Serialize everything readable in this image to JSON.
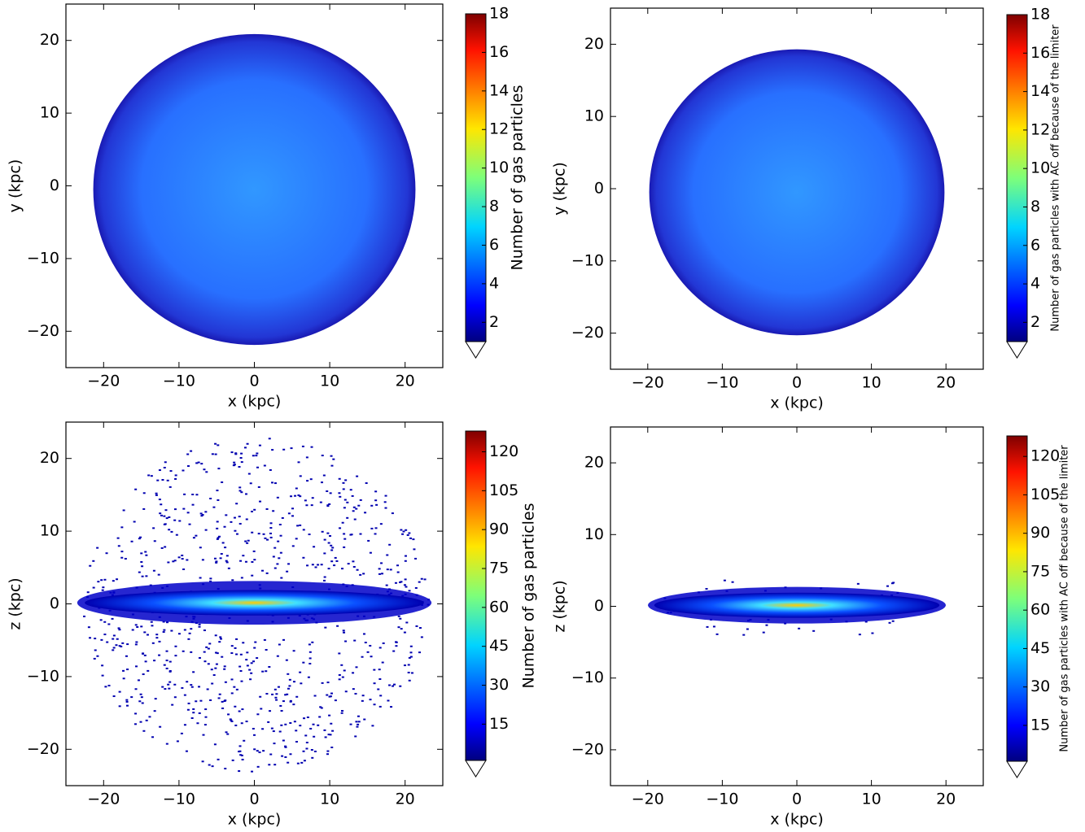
{
  "chart_data": [
    {
      "type": "hist2d",
      "xlabel": "x (kpc)",
      "ylabel": "y (kpc)",
      "xlim": [
        -25,
        25
      ],
      "ylim": [
        -25,
        25
      ],
      "xticks": [
        {
          "value": -20,
          "label": "−20"
        },
        {
          "value": -10,
          "label": "−10"
        },
        0,
        10,
        20
      ],
      "yticks": [
        {
          "value": -20,
          "label": "−20"
        },
        {
          "value": -10,
          "label": "−10"
        },
        0,
        10,
        20
      ],
      "colormap": "jet",
      "colorbar": {
        "label": "Number of gas particles",
        "lim": [
          1,
          18
        ],
        "ticks": [
          2,
          4,
          6,
          8,
          10,
          12,
          14,
          16,
          18
        ]
      }
    },
    {
      "type": "hist2d",
      "xlabel": "x (kpc)",
      "ylabel": "y (kpc)",
      "xlim": [
        -25,
        25
      ],
      "ylim": [
        -25,
        25
      ],
      "xticks": [
        {
          "value": -20,
          "label": "−20"
        },
        {
          "value": -10,
          "label": "−10"
        },
        0,
        10,
        20
      ],
      "yticks": [
        {
          "value": -20,
          "label": "−20"
        },
        {
          "value": -10,
          "label": "−10"
        },
        0,
        10,
        20
      ],
      "colormap": "jet",
      "colorbar": {
        "label": "Number of gas particles with AC off because of the limiter",
        "lim": [
          1,
          18
        ],
        "ticks": [
          2,
          4,
          6,
          8,
          10,
          12,
          14,
          16,
          18
        ]
      }
    },
    {
      "type": "hist2d",
      "xlabel": "x (kpc)",
      "ylabel": "z (kpc)",
      "xlim": [
        -25,
        25
      ],
      "ylim": [
        -25,
        25
      ],
      "xticks": [
        {
          "value": -20,
          "label": "−20"
        },
        {
          "value": -10,
          "label": "−10"
        },
        0,
        10,
        20
      ],
      "yticks": [
        {
          "value": -20,
          "label": "−20"
        },
        {
          "value": -10,
          "label": "−10"
        },
        0,
        10,
        20
      ],
      "colormap": "jet",
      "colorbar": {
        "label": "Number of gas particles",
        "lim": [
          1,
          128
        ],
        "ticks": [
          15,
          30,
          45,
          60,
          75,
          90,
          105,
          120
        ]
      }
    },
    {
      "type": "hist2d",
      "xlabel": "x (kpc)",
      "ylabel": "z (kpc)",
      "xlim": [
        -25,
        25
      ],
      "ylim": [
        -25,
        25
      ],
      "xticks": [
        {
          "value": -20,
          "label": "−20"
        },
        {
          "value": -10,
          "label": "−10"
        },
        0,
        10,
        20
      ],
      "yticks": [
        {
          "value": -20,
          "label": "−20"
        },
        {
          "value": -10,
          "label": "−10"
        },
        0,
        10,
        20
      ],
      "colormap": "jet",
      "colorbar": {
        "label": "Number of gas particles with AC off because of the limiter",
        "lim": [
          1,
          128
        ],
        "ticks": [
          15,
          30,
          45,
          60,
          75,
          90,
          105,
          120
        ]
      }
    }
  ]
}
